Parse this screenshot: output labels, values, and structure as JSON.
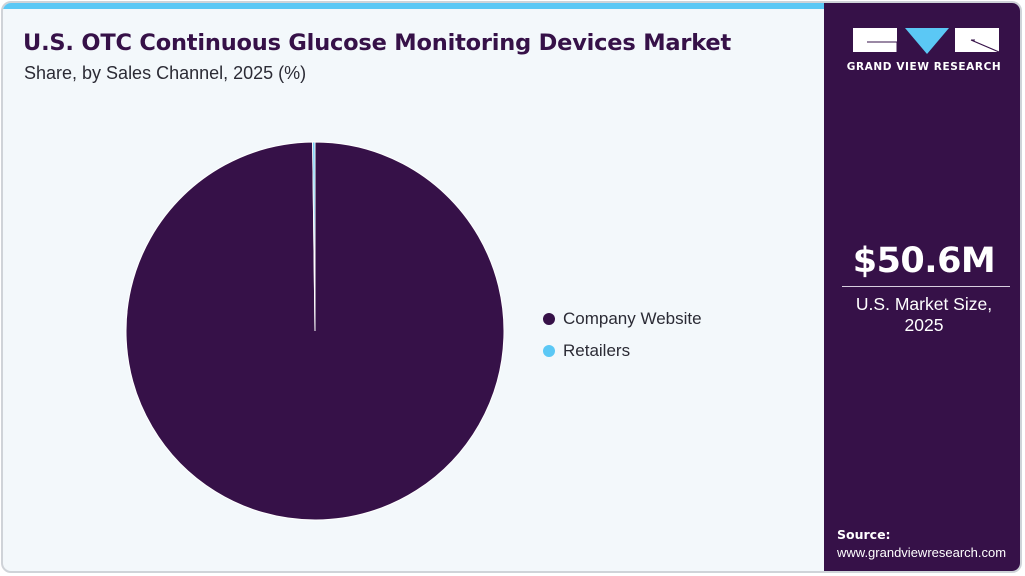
{
  "header": {
    "title": "U.S. OTC Continuous Glucose Monitoring Devices Market",
    "subtitle": "Share, by Sales Channel, 2025 (%)"
  },
  "colors": {
    "accent_bar": "#5bc8f5",
    "brand_dark": "#361148",
    "company_website": "#361148",
    "retailers": "#5bc8f5",
    "background": "#f3f8fb"
  },
  "legend": {
    "items": [
      {
        "label": "Company Website",
        "color": "#361148"
      },
      {
        "label": "Retailers",
        "color": "#5bc8f5"
      }
    ]
  },
  "side_panel": {
    "logo_text": "GRAND VIEW RESEARCH",
    "market_value": "$50.6M",
    "market_label_line1": "U.S. Market Size,",
    "market_label_line2": "2025",
    "source_label": "Source:",
    "source_url": "www.grandviewresearch.com"
  },
  "chart_data": {
    "type": "pie",
    "title": "U.S. OTC Continuous Glucose Monitoring Devices Market",
    "subtitle": "Share, by Sales Channel, 2025 (%)",
    "categories": [
      "Company Website",
      "Retailers"
    ],
    "values": [
      99.8,
      0.2
    ],
    "colors": [
      "#361148",
      "#5bc8f5"
    ],
    "legend_position": "right",
    "start_angle": "12 o'clock",
    "direction": "clockwise",
    "data_labels": false
  }
}
